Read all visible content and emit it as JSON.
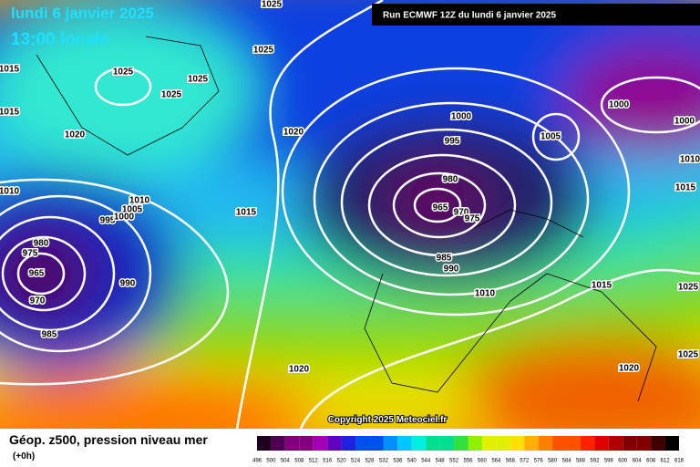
{
  "header": {
    "date": "lundi 6 janvier 2025",
    "time": "13:00 locale",
    "run": "Run ECMWF 12Z du lundi 6 janvier 2025"
  },
  "copyright": "Copyright 2025 Meteociel.fr",
  "footer": {
    "title": "Géop. z500, pression niveau mer",
    "step": "(+0h)"
  },
  "colorbar": {
    "labels": [
      496,
      500,
      504,
      508,
      512,
      516,
      520,
      524,
      528,
      532,
      536,
      540,
      544,
      548,
      552,
      556,
      560,
      564,
      568,
      572,
      576,
      580,
      584,
      588,
      592,
      596,
      600,
      604,
      608,
      612,
      616
    ]
  },
  "isobar_labels": [
    1025,
    1025,
    1025,
    1025,
    1025,
    1020,
    1020,
    1015,
    1015,
    1010,
    1010,
    1005,
    995,
    1000,
    980,
    975,
    965,
    970,
    985,
    990,
    1015,
    1000,
    995,
    980,
    965,
    970,
    975,
    985,
    990,
    1005,
    1000,
    1000,
    1010,
    1015,
    1010,
    1015,
    1025,
    1025,
    1020,
    1020
  ]
}
